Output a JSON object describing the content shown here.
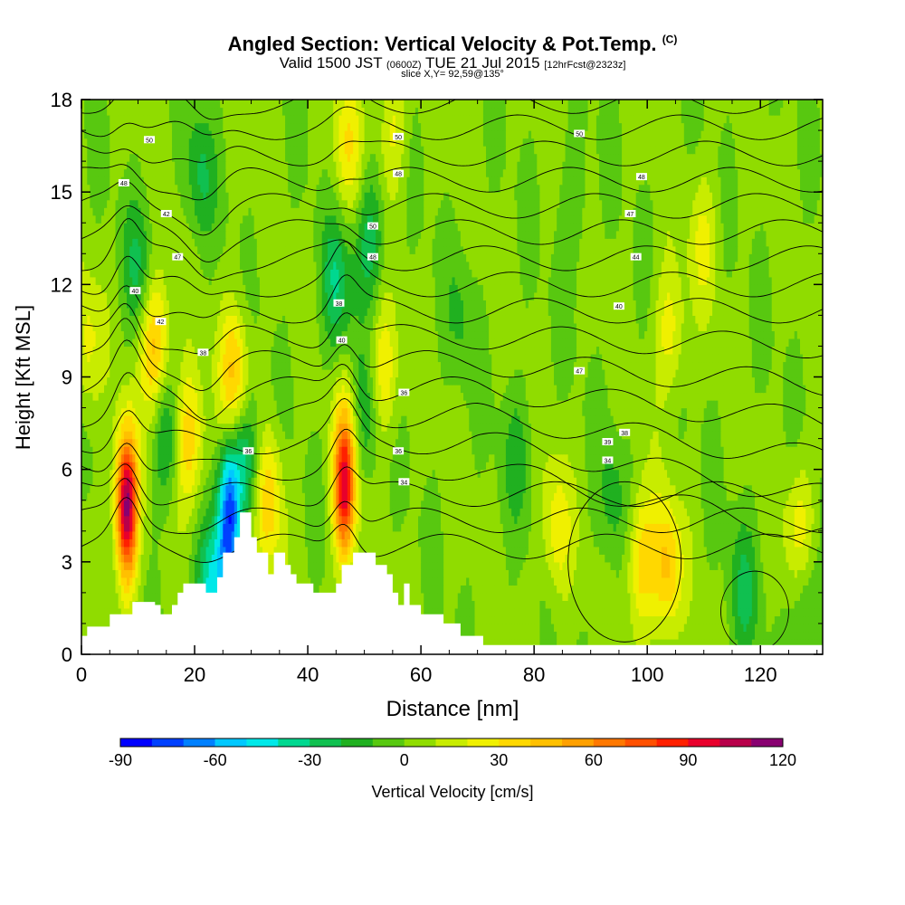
{
  "chart_data": {
    "type": "heatmap",
    "title": "Angled Section: Vertical Velocity & Pot.Temp.",
    "title_tag": "(C)",
    "subtitle": {
      "valid": "Valid 1500 JST",
      "zulu": "(0600Z)",
      "date": "TUE 21 Jul 2015",
      "forecast": "[12hrFcst@2323z]"
    },
    "slice_label": "slice X,Y= 92,59@135°",
    "xlabel": "Distance [nm]",
    "ylabel": "Height [Kft MSL]",
    "xlim": [
      0,
      131
    ],
    "ylim": [
      0,
      18
    ],
    "x_ticks": [
      0,
      20,
      40,
      60,
      80,
      100,
      120
    ],
    "y_ticks": [
      0,
      3,
      6,
      9,
      12,
      15,
      18
    ],
    "colorbar": {
      "label": "Vertical Velocity [cm/s]",
      "min": -90,
      "max": 120,
      "step": 10,
      "tick_values": [
        -90,
        -60,
        -30,
        0,
        30,
        60,
        90,
        120
      ],
      "colors": [
        "#0000ff",
        "#0040ff",
        "#0080ff",
        "#00c8ff",
        "#00e8e8",
        "#00d890",
        "#10c050",
        "#20b020",
        "#58c810",
        "#90dc00",
        "#c8ec00",
        "#f0f000",
        "#ffd800",
        "#ffc000",
        "#ffa000",
        "#ff7800",
        "#ff5000",
        "#ff2000",
        "#e8002c",
        "#b8004a",
        "#880070"
      ]
    },
    "updraft_cores": [
      {
        "x": 8,
        "y": 4.8,
        "w": 115
      },
      {
        "x": 13,
        "y": 10,
        "w": 45
      },
      {
        "x": 19,
        "y": 7,
        "w": 40
      },
      {
        "x": 27,
        "y": 9,
        "w": 40
      },
      {
        "x": 33,
        "y": 5,
        "w": 35
      },
      {
        "x": 46.5,
        "y": 5.5,
        "w": 95
      },
      {
        "x": 53,
        "y": 9,
        "w": 35
      },
      {
        "x": 47,
        "y": 16.5,
        "w": 25
      },
      {
        "x": 55,
        "y": 17,
        "w": 20
      },
      {
        "x": 84,
        "y": 4,
        "w": 25
      },
      {
        "x": 99,
        "y": 3,
        "w": 35
      },
      {
        "x": 103.5,
        "y": 2.8,
        "w": 40
      },
      {
        "x": 104,
        "y": 10.5,
        "w": 25
      },
      {
        "x": 110,
        "y": 13.5,
        "w": 18
      },
      {
        "x": 1,
        "y": 10,
        "w": 22
      },
      {
        "x": 127,
        "y": 4,
        "w": 25
      }
    ],
    "downdraft_cores": [
      {
        "x": 26,
        "y": 4.4,
        "w": -70
      },
      {
        "x": 23,
        "y": 2,
        "w": -50
      },
      {
        "x": 29,
        "y": 6.2,
        "w": -38
      },
      {
        "x": 45,
        "y": 12,
        "w": -30
      },
      {
        "x": 51,
        "y": 13.5,
        "w": -28
      },
      {
        "x": 10,
        "y": 12.5,
        "w": -22
      },
      {
        "x": 15,
        "y": 7,
        "w": -25
      },
      {
        "x": 21,
        "y": 15.5,
        "w": -22
      },
      {
        "x": 51,
        "y": 8,
        "w": -25
      },
      {
        "x": 94,
        "y": 5,
        "w": -15
      },
      {
        "x": 117,
        "y": 2,
        "w": -22
      },
      {
        "x": 128,
        "y": 1.5,
        "w": -22
      },
      {
        "x": 77,
        "y": 6.5,
        "w": -15
      },
      {
        "x": 87,
        "y": 14.5,
        "w": -12
      },
      {
        "x": 67,
        "y": 11,
        "w": -12
      }
    ],
    "terrain_profile": [
      {
        "x": 0,
        "h": 0.6
      },
      {
        "x": 1,
        "h": 0.9
      },
      {
        "x": 5,
        "h": 1.3
      },
      {
        "x": 9,
        "h": 1.7
      },
      {
        "x": 13,
        "h": 1.6
      },
      {
        "x": 14,
        "h": 1.3
      },
      {
        "x": 16,
        "h": 1.6
      },
      {
        "x": 17,
        "h": 2.0
      },
      {
        "x": 18,
        "h": 2.3
      },
      {
        "x": 22,
        "h": 2.0
      },
      {
        "x": 24,
        "h": 2.5
      },
      {
        "x": 25,
        "h": 3.3
      },
      {
        "x": 27,
        "h": 3.8
      },
      {
        "x": 28,
        "h": 4.6
      },
      {
        "x": 30,
        "h": 3.8
      },
      {
        "x": 31,
        "h": 3.3
      },
      {
        "x": 33,
        "h": 2.6
      },
      {
        "x": 34,
        "h": 3.3
      },
      {
        "x": 36,
        "h": 2.9
      },
      {
        "x": 37,
        "h": 2.6
      },
      {
        "x": 38,
        "h": 2.3
      },
      {
        "x": 41,
        "h": 2.0
      },
      {
        "x": 45,
        "h": 2.3
      },
      {
        "x": 46,
        "h": 2.9
      },
      {
        "x": 48,
        "h": 3.3
      },
      {
        "x": 52,
        "h": 2.9
      },
      {
        "x": 54,
        "h": 2.6
      },
      {
        "x": 55,
        "h": 2.0
      },
      {
        "x": 56,
        "h": 1.6
      },
      {
        "x": 57,
        "h": 2.3
      },
      {
        "x": 58,
        "h": 1.6
      },
      {
        "x": 60,
        "h": 1.3
      },
      {
        "x": 64,
        "h": 1.0
      },
      {
        "x": 67,
        "h": 0.6
      },
      {
        "x": 71,
        "h": 0.3
      },
      {
        "x": 131,
        "h": 0.3
      }
    ],
    "theta_contours": {
      "interval_c": 1,
      "labels": [
        {
          "x": 12,
          "y": 16.7,
          "text": "50"
        },
        {
          "x": 56,
          "y": 16.8,
          "text": "50"
        },
        {
          "x": 88,
          "y": 16.9,
          "text": "50"
        },
        {
          "x": 7.5,
          "y": 15.3,
          "text": "48"
        },
        {
          "x": 56,
          "y": 15.6,
          "text": "48"
        },
        {
          "x": 99,
          "y": 15.5,
          "text": "48"
        },
        {
          "x": 15,
          "y": 14.3,
          "text": "42"
        },
        {
          "x": 51.5,
          "y": 13.9,
          "text": "50"
        },
        {
          "x": 97,
          "y": 14.3,
          "text": "47"
        },
        {
          "x": 17,
          "y": 12.9,
          "text": "47"
        },
        {
          "x": 51.5,
          "y": 12.9,
          "text": "48"
        },
        {
          "x": 98,
          "y": 12.9,
          "text": "44"
        },
        {
          "x": 9.5,
          "y": 11.8,
          "text": "40"
        },
        {
          "x": 45.5,
          "y": 11.4,
          "text": "38"
        },
        {
          "x": 95,
          "y": 11.3,
          "text": "40"
        },
        {
          "x": 14,
          "y": 10.8,
          "text": "42"
        },
        {
          "x": 46,
          "y": 10.2,
          "text": "40"
        },
        {
          "x": 88,
          "y": 9.2,
          "text": "47"
        },
        {
          "x": 21.5,
          "y": 9.8,
          "text": "38"
        },
        {
          "x": 57,
          "y": 8.5,
          "text": "36"
        },
        {
          "x": 96,
          "y": 7.2,
          "text": "38"
        },
        {
          "x": 29.5,
          "y": 6.6,
          "text": "36"
        },
        {
          "x": 56,
          "y": 6.6,
          "text": "36"
        },
        {
          "x": 93,
          "y": 6.9,
          "text": "39"
        },
        {
          "x": 57,
          "y": 5.6,
          "text": "34"
        },
        {
          "x": 93,
          "y": 6.3,
          "text": "34"
        }
      ]
    }
  }
}
